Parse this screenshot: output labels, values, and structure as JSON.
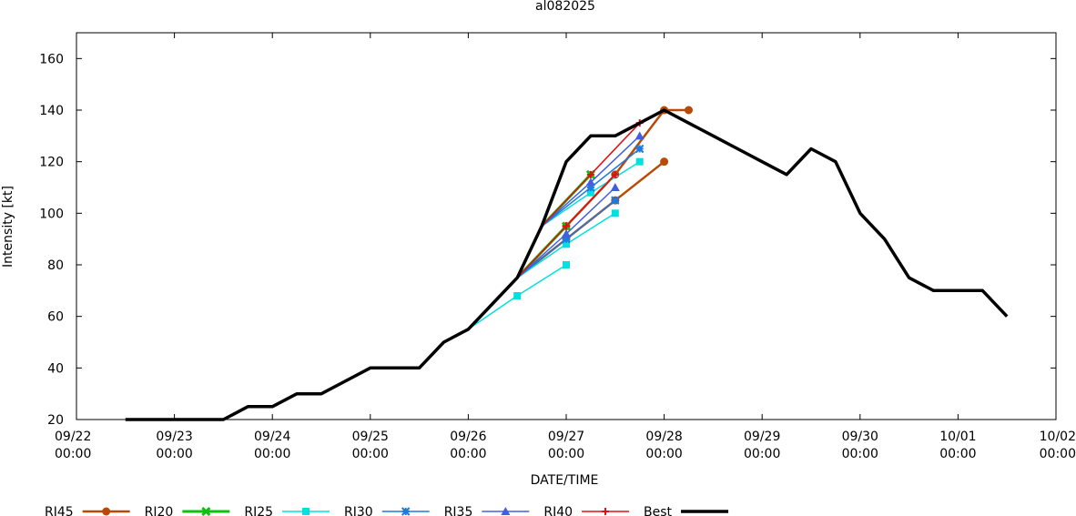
{
  "chart_data": {
    "type": "line",
    "title": "al082025",
    "xlabel": "DATE/TIME",
    "ylabel": "Intensity [kt]",
    "xlim": [
      0,
      10
    ],
    "ylim": [
      20,
      170
    ],
    "x_unit": "days since 09/22 00:00",
    "yticks": [
      20,
      40,
      60,
      80,
      100,
      120,
      140,
      160
    ],
    "xticks": [
      {
        "x": 0,
        "date": "09/22",
        "time": "00:00"
      },
      {
        "x": 1,
        "date": "09/23",
        "time": "00:00"
      },
      {
        "x": 2,
        "date": "09/24",
        "time": "00:00"
      },
      {
        "x": 3,
        "date": "09/25",
        "time": "00:00"
      },
      {
        "x": 4,
        "date": "09/26",
        "time": "00:00"
      },
      {
        "x": 5,
        "date": "09/27",
        "time": "00:00"
      },
      {
        "x": 6,
        "date": "09/28",
        "time": "00:00"
      },
      {
        "x": 7,
        "date": "09/29",
        "time": "00:00"
      },
      {
        "x": 8,
        "date": "09/30",
        "time": "00:00"
      },
      {
        "x": 9,
        "date": "10/01",
        "time": "00:00"
      },
      {
        "x": 10,
        "date": "10/02",
        "time": "00:00"
      }
    ],
    "series": [
      {
        "name": "RI45",
        "color": "#b84a06",
        "marker": "circle",
        "width": 2.5,
        "lines": [
          [
            [
              4.5,
              75
            ],
            [
              5.0,
              95
            ],
            [
              5.5,
              115
            ],
            [
              6.0,
              140
            ],
            [
              6.25,
              140
            ]
          ],
          [
            [
              4.5,
              75
            ],
            [
              5.0,
              90
            ],
            [
              5.5,
              105
            ],
            [
              6.0,
              120
            ]
          ]
        ]
      },
      {
        "name": "RI20",
        "color": "#10c010",
        "marker": "cross",
        "width": 3,
        "lines": [
          [
            [
              4.5,
              75
            ],
            [
              5.0,
              95
            ]
          ],
          [
            [
              4.75,
              95
            ],
            [
              5.25,
              115
            ]
          ]
        ]
      },
      {
        "name": "RI25",
        "color": "#00e0e0",
        "marker": "square",
        "width": 1.5,
        "lines": [
          [
            [
              4.0,
              55
            ],
            [
              4.5,
              68
            ],
            [
              5.0,
              80
            ]
          ],
          [
            [
              4.5,
              75
            ],
            [
              5.0,
              88
            ],
            [
              5.5,
              100
            ]
          ],
          [
            [
              4.75,
              95
            ],
            [
              5.25,
              108
            ],
            [
              5.75,
              120
            ]
          ]
        ]
      },
      {
        "name": "RI30",
        "color": "#1c7ae0",
        "marker": "star",
        "width": 1.5,
        "lines": [
          [
            [
              4.5,
              75
            ],
            [
              5.0,
              90
            ],
            [
              5.5,
              105
            ]
          ],
          [
            [
              4.75,
              95
            ],
            [
              5.25,
              110
            ],
            [
              5.75,
              125
            ]
          ]
        ]
      },
      {
        "name": "RI35",
        "color": "#4060e0",
        "marker": "triangle",
        "width": 1.5,
        "lines": [
          [
            [
              4.5,
              75
            ],
            [
              5.0,
              92
            ],
            [
              5.5,
              110
            ]
          ],
          [
            [
              4.75,
              95
            ],
            [
              5.25,
              112
            ],
            [
              5.75,
              130
            ]
          ]
        ]
      },
      {
        "name": "RI40",
        "color": "#e01010",
        "marker": "plus",
        "width": 1.5,
        "lines": [
          [
            [
              4.5,
              75
            ],
            [
              5.0,
              95
            ],
            [
              5.5,
              115
            ]
          ],
          [
            [
              4.75,
              95
            ],
            [
              5.25,
              115
            ],
            [
              5.75,
              135
            ]
          ]
        ]
      },
      {
        "name": "Best",
        "color": "#000000",
        "marker": "none",
        "width": 3.5,
        "lines": [
          [
            [
              0.5,
              20
            ],
            [
              1.0,
              20
            ],
            [
              1.5,
              20
            ],
            [
              1.75,
              25
            ],
            [
              2.0,
              25
            ],
            [
              2.25,
              30
            ],
            [
              2.5,
              30
            ],
            [
              2.75,
              35
            ],
            [
              3.0,
              40
            ],
            [
              3.25,
              40
            ],
            [
              3.5,
              40
            ],
            [
              3.75,
              50
            ],
            [
              4.0,
              55
            ],
            [
              4.25,
              65
            ],
            [
              4.5,
              75
            ],
            [
              4.75,
              95
            ],
            [
              5.0,
              120
            ],
            [
              5.25,
              130
            ],
            [
              5.5,
              130
            ],
            [
              5.75,
              135
            ],
            [
              6.0,
              140
            ],
            [
              6.25,
              135
            ],
            [
              6.5,
              130
            ],
            [
              6.75,
              125
            ],
            [
              7.0,
              120
            ],
            [
              7.25,
              115
            ],
            [
              7.5,
              125
            ],
            [
              7.75,
              120
            ],
            [
              8.0,
              100
            ],
            [
              8.25,
              90
            ],
            [
              8.5,
              75
            ],
            [
              8.75,
              70
            ],
            [
              9.0,
              70
            ],
            [
              9.25,
              70
            ],
            [
              9.5,
              60
            ]
          ]
        ]
      }
    ]
  }
}
